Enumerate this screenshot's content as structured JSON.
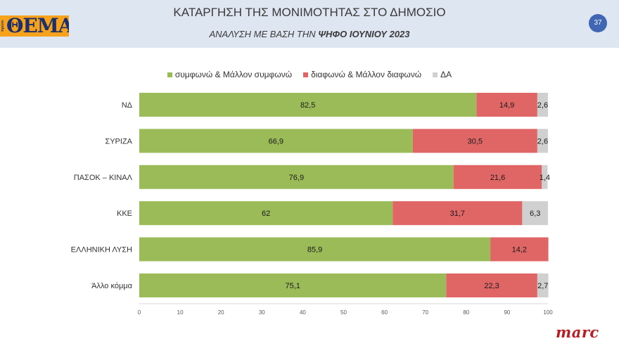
{
  "header": {
    "title": "ΚΑΤΑΡΓΗΣΗ ΤΗΣ ΜΟΝΙΜΟΤΗΤΑΣ ΣΤΟ ΔΗΜΟΣΙΟ",
    "subtitle_prefix": "ΑΝΑΛΥΣΗ ΜΕ ΒΑΣΗ ΤΗΝ ",
    "subtitle_emphasis": "ΨΗΦΟ ΙΟΥΝΙΟΥ 2023",
    "page_number": "37",
    "logo_text": "ΘΕΜΑ",
    "logo_small_text": "πρώτο",
    "footer_logo_text": "marc"
  },
  "colors": {
    "agree": "#9bbb59",
    "disagree": "#e06666",
    "dk": "#d0d0d0",
    "header_bg": "#dde6f1",
    "badge": "#3f67b4",
    "logo_bg": "#f6a21c"
  },
  "chart_data": {
    "type": "bar",
    "orientation": "horizontal",
    "stacked": true,
    "categories": [
      "ΝΔ",
      "ΣΥΡΙΖΑ",
      "ΠΑΣΟΚ – ΚΙΝΑΛ",
      "ΚΚΕ",
      "ΕΛΛΗΝΙΚΗ ΛΥΣΗ",
      "Άλλο κόμμα"
    ],
    "series": [
      {
        "name": "συμφωνώ & Μάλλον συμφωνώ",
        "color": "#9bbb59",
        "values": [
          82.5,
          66.9,
          76.9,
          62,
          85.9,
          75.1
        ],
        "labels": [
          "82,5",
          "66,9",
          "76,9",
          "62",
          "85,9",
          "75,1"
        ]
      },
      {
        "name": "διαφωνώ & Μάλλον διαφωνώ",
        "color": "#e06666",
        "values": [
          14.9,
          30.5,
          21.6,
          31.7,
          14.2,
          22.3
        ],
        "labels": [
          "14,9",
          "30,5",
          "21,6",
          "31,7",
          "14,2",
          "22,3"
        ]
      },
      {
        "name": "ΔΑ",
        "color": "#d0d0d0",
        "values": [
          2.6,
          2.6,
          1.4,
          6.3,
          0,
          2.7
        ],
        "labels": [
          "2,6",
          "2,6",
          "1,4",
          "6,3",
          "",
          "2,7"
        ]
      }
    ],
    "xlim": [
      0,
      100
    ],
    "xticks": [
      "0",
      "10",
      "20",
      "30",
      "40",
      "50",
      "60",
      "70",
      "80",
      "90",
      "100"
    ],
    "legend_position": "top-center",
    "grid": false
  }
}
